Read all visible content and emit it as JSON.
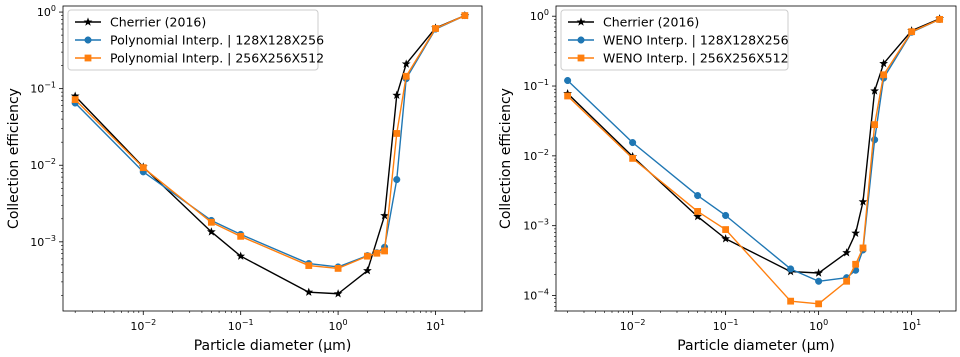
{
  "chart_data": [
    {
      "type": "line",
      "title": "",
      "xlabel": "Particle diameter (μm)",
      "ylabel": "Collection efficiency",
      "xscale": "log",
      "yscale": "log",
      "xlim": [
        0.0015,
        30
      ],
      "ylim": [
        0.000125,
        1.2
      ],
      "grid": false,
      "legend_position": "top-left",
      "x_ticks": [
        {
          "value": 0.01,
          "base": "10",
          "exp": "−2"
        },
        {
          "value": 0.1,
          "base": "10",
          "exp": "−1"
        },
        {
          "value": 1,
          "base": "10",
          "exp": "0"
        },
        {
          "value": 10,
          "base": "10",
          "exp": "1"
        }
      ],
      "y_ticks": [
        {
          "value": 0.001,
          "base": "10",
          "exp": "−3"
        },
        {
          "value": 0.01,
          "base": "10",
          "exp": "−2"
        },
        {
          "value": 0.1,
          "base": "10",
          "exp": "−1"
        },
        {
          "value": 1,
          "base": "10",
          "exp": "0"
        }
      ],
      "series": [
        {
          "name": "Cherrier (2016)",
          "color": "#000000",
          "marker": "star",
          "x": [
            0.002,
            0.01,
            0.05,
            0.1,
            0.5,
            1,
            2,
            3,
            4,
            5,
            10,
            20
          ],
          "y": [
            0.08,
            0.0095,
            0.00135,
            0.00065,
            0.00022,
            0.00021,
            0.00042,
            0.0022,
            0.082,
            0.21,
            0.62,
            0.9
          ]
        },
        {
          "name": "Polynomial Interp. | 128X128X256",
          "color": "#1f77b4",
          "marker": "circle",
          "x": [
            0.002,
            0.01,
            0.05,
            0.1,
            0.5,
            1,
            2,
            2.5,
            3,
            4,
            5,
            10,
            20
          ],
          "y": [
            0.065,
            0.0082,
            0.0019,
            0.00125,
            0.00052,
            0.00047,
            0.00066,
            0.00072,
            0.00085,
            0.0065,
            0.135,
            0.6,
            0.9
          ]
        },
        {
          "name": "Polynomial Interp. | 256X256X512",
          "color": "#ff7f0e",
          "marker": "square",
          "x": [
            0.002,
            0.01,
            0.05,
            0.1,
            0.5,
            1,
            2,
            2.5,
            3,
            4,
            5,
            10,
            20
          ],
          "y": [
            0.072,
            0.0093,
            0.0018,
            0.00118,
            0.00049,
            0.00045,
            0.00065,
            0.00071,
            0.00076,
            0.026,
            0.145,
            0.61,
            0.9
          ]
        }
      ]
    },
    {
      "type": "line",
      "title": "",
      "xlabel": "Particle diameter (μm)",
      "ylabel": "Collection efficiency",
      "xscale": "log",
      "yscale": "log",
      "xlim": [
        0.0015,
        30
      ],
      "ylim": [
        6e-05,
        1.4
      ],
      "grid": false,
      "legend_position": "top-left",
      "x_ticks": [
        {
          "value": 0.01,
          "base": "10",
          "exp": "−2"
        },
        {
          "value": 0.1,
          "base": "10",
          "exp": "−1"
        },
        {
          "value": 1,
          "base": "10",
          "exp": "0"
        },
        {
          "value": 10,
          "base": "10",
          "exp": "1"
        }
      ],
      "y_ticks": [
        {
          "value": 0.0001,
          "base": "10",
          "exp": "−4"
        },
        {
          "value": 0.001,
          "base": "10",
          "exp": "−3"
        },
        {
          "value": 0.01,
          "base": "10",
          "exp": "−2"
        },
        {
          "value": 0.1,
          "base": "10",
          "exp": "−1"
        },
        {
          "value": 1,
          "base": "10",
          "exp": "0"
        }
      ],
      "series": [
        {
          "name": "Cherrier (2016)",
          "color": "#000000",
          "marker": "star",
          "x": [
            0.002,
            0.01,
            0.05,
            0.1,
            0.5,
            1,
            2,
            2.5,
            3,
            4,
            5,
            10,
            20
          ],
          "y": [
            0.078,
            0.0098,
            0.00135,
            0.00065,
            0.00022,
            0.00021,
            0.00041,
            0.00078,
            0.0022,
            0.085,
            0.21,
            0.62,
            0.92
          ]
        },
        {
          "name": "WENO Interp. | 128X128X256",
          "color": "#1f77b4",
          "marker": "circle",
          "x": [
            0.002,
            0.01,
            0.05,
            0.1,
            0.5,
            1,
            2,
            2.5,
            3,
            4,
            5,
            10,
            20
          ],
          "y": [
            0.12,
            0.0155,
            0.0027,
            0.0014,
            0.00024,
            0.00016,
            0.00018,
            0.00023,
            0.00045,
            0.017,
            0.13,
            0.59,
            0.9
          ]
        },
        {
          "name": "WENO Interp. | 256X256X512",
          "color": "#ff7f0e",
          "marker": "square",
          "x": [
            0.002,
            0.01,
            0.05,
            0.1,
            0.5,
            1,
            2,
            2.5,
            3,
            4,
            5,
            10,
            20
          ],
          "y": [
            0.072,
            0.0092,
            0.0016,
            0.00088,
            8.3e-05,
            7.6e-05,
            0.00016,
            0.00028,
            0.00048,
            0.028,
            0.145,
            0.6,
            0.9
          ]
        }
      ]
    }
  ]
}
